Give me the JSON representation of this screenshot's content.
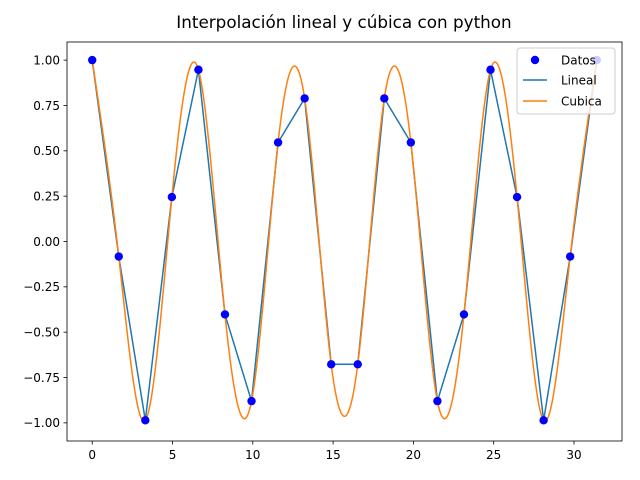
{
  "chart_data": {
    "type": "line",
    "title": "Interpolación lineal  y cúbica con python",
    "xlabel": "",
    "ylabel": "",
    "xlim": [
      -1.57,
      32.99
    ],
    "ylim": [
      -1.1,
      1.1
    ],
    "xticks": [
      0,
      5,
      10,
      15,
      20,
      25,
      30
    ],
    "xtick_labels": [
      "0",
      "5",
      "10",
      "15",
      "20",
      "25",
      "30"
    ],
    "yticks": [
      -1.0,
      -0.75,
      -0.5,
      -0.25,
      0.0,
      0.25,
      0.5,
      0.75,
      1.0
    ],
    "ytick_labels": [
      "−1.00",
      "−0.75",
      "−0.50",
      "−0.25",
      "0.00",
      "0.25",
      "0.50",
      "0.75",
      "1.00"
    ],
    "grid": false,
    "legend_position": "top-right",
    "series": [
      {
        "name": "Datos",
        "kind": "scatter",
        "color": "#0000ff",
        "x": [
          0,
          1.653,
          3.307,
          4.96,
          6.614,
          8.267,
          9.921,
          11.574,
          13.228,
          14.881,
          16.535,
          18.188,
          19.842,
          21.495,
          23.149,
          24.802,
          26.456,
          28.109,
          29.763,
          31.416
        ],
        "y": [
          1.0,
          -0.083,
          -0.986,
          0.245,
          0.947,
          -0.402,
          -0.88,
          0.546,
          0.789,
          -0.677,
          -0.677,
          0.789,
          0.546,
          -0.88,
          -0.402,
          0.947,
          0.245,
          -0.986,
          -0.083,
          1.0
        ]
      },
      {
        "name": "Lineal",
        "kind": "line",
        "color": "#1f77b4",
        "x": [
          0,
          1.653,
          3.307,
          4.96,
          6.614,
          8.267,
          9.921,
          11.574,
          13.228,
          14.881,
          16.535,
          18.188,
          19.842,
          21.495,
          23.149,
          24.802,
          26.456,
          28.109,
          29.763,
          31.416
        ],
        "y": [
          1.0,
          -0.083,
          -0.986,
          0.245,
          0.947,
          -0.402,
          -0.88,
          0.546,
          0.789,
          -0.677,
          -0.677,
          0.789,
          0.546,
          -0.88,
          -0.402,
          0.947,
          0.245,
          -0.986,
          -0.083,
          1.0
        ]
      },
      {
        "name": "Cubica",
        "kind": "line",
        "color": "#ff7f0e",
        "x": [
          0,
          1.653,
          3.307,
          4.96,
          6.614,
          8.267,
          9.921,
          11.574,
          13.228,
          14.881,
          16.535,
          18.188,
          19.842,
          21.495,
          23.149,
          24.802,
          26.456,
          28.109,
          29.763,
          31.416
        ],
        "y": [
          1.0,
          -0.083,
          -0.986,
          0.245,
          0.947,
          -0.402,
          -0.88,
          0.546,
          0.789,
          -0.677,
          -0.677,
          0.789,
          0.546,
          -0.88,
          -0.402,
          0.947,
          0.245,
          -0.986,
          -0.083,
          1.0
        ]
      }
    ]
  }
}
